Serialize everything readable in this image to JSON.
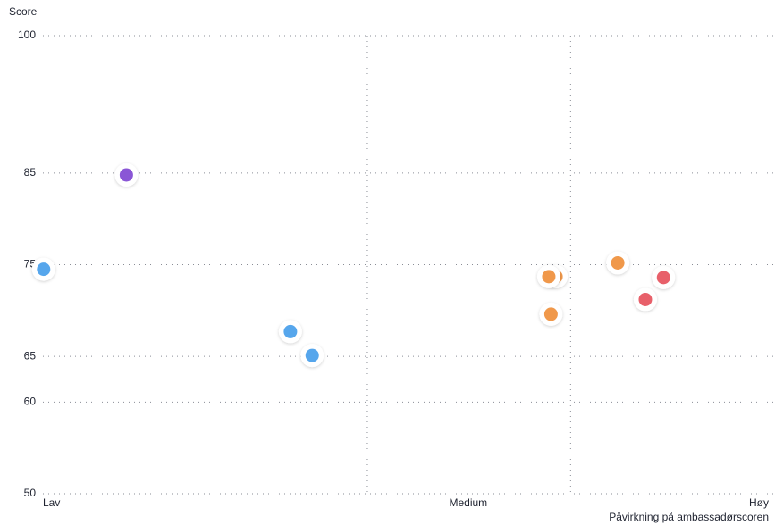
{
  "chart_data": {
    "type": "scatter",
    "y_label": "Score",
    "x_label": "Påvirkning på ambassadørscoren",
    "xlim": [
      0,
      100
    ],
    "xticks": [
      {
        "value": 0,
        "label": "Lav"
      },
      {
        "value": 58.6,
        "label": "Medium"
      },
      {
        "value": 100,
        "label": "Høy"
      }
    ],
    "xgrid": [
      44.7,
      72.7
    ],
    "ylim": [
      50,
      100
    ],
    "yticks": [
      50,
      60,
      65,
      75,
      85,
      100
    ],
    "grid": true,
    "series": [
      {
        "color": "#8a56d6",
        "x": [
          11.5
        ],
        "values": [
          84.8
        ]
      },
      {
        "color": "#56a6ec",
        "x": [
          0.1,
          34.1,
          37.1
        ],
        "values": [
          74.5,
          67.7,
          65.1
        ]
      },
      {
        "color": "#f0984a",
        "x": [
          70.7,
          69.7,
          70.0,
          79.2
        ],
        "values": [
          73.7,
          73.7,
          69.6,
          75.2
        ]
      },
      {
        "color": "#e8606a",
        "x": [
          85.5,
          83.0
        ],
        "values": [
          73.6,
          71.2
        ]
      }
    ]
  }
}
